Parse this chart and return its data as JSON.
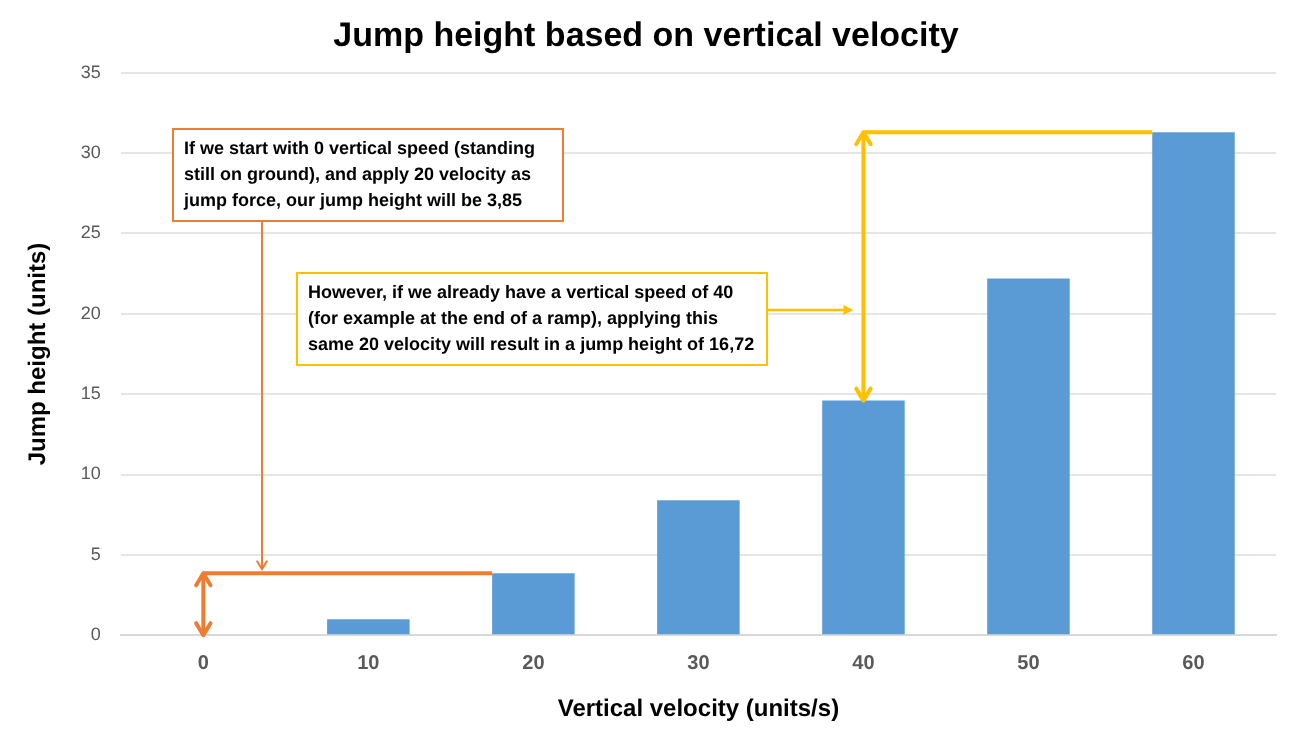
{
  "chart_data": {
    "type": "bar",
    "title": "Jump height based on vertical velocity",
    "xlabel": "Vertical velocity (units/s)",
    "ylabel": "Jump height (units)",
    "categories": [
      "0",
      "10",
      "20",
      "30",
      "40",
      "50",
      "60"
    ],
    "values": [
      0,
      1.0,
      3.85,
      8.4,
      14.6,
      22.2,
      31.3
    ],
    "color": "#5b9bd5",
    "ylim": [
      0,
      35
    ],
    "yticks": [
      0,
      5,
      10,
      15,
      20,
      25,
      30,
      35
    ],
    "grid": "y",
    "legend": false,
    "annotations": [
      "If we start with 0 vertical speed (standing still on ground), and apply 20 velocity as jump force, our jump height will be 3,85",
      "However, if we already have a vertical speed of 40 (for example at the end of a ramp), applying this same 20 velocity will result in a jump height of 16,72"
    ]
  }
}
